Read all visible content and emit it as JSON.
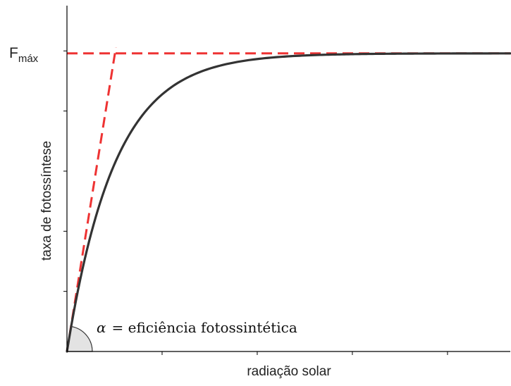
{
  "chart_data": {
    "type": "line",
    "title": "",
    "xlabel": "radiação solar",
    "ylabel": "taxa de fotossíntese",
    "xlim": [
      0,
      1
    ],
    "ylim": [
      0,
      1
    ],
    "x_tick_count": 4,
    "y_tick_count": 5,
    "grid": false,
    "legend": "none",
    "series": [
      {
        "function": "y = Fmax * (1 - exp(-alpha * x / Fmax))",
        "fmax": 0.855,
        "alpha": 7.9,
        "color": "#333333"
      }
    ],
    "reference_lines": {
      "fmax_line": {
        "y": 0.855,
        "color": "#ee3333"
      },
      "initial_slope": {
        "slope": 7.9,
        "color": "#ee3333"
      }
    },
    "annotations": {
      "fmax_label_main": "F",
      "fmax_label_sub": "máx",
      "alpha_symbol": "α",
      "alpha_text": "= eficiência fotossintética"
    }
  }
}
